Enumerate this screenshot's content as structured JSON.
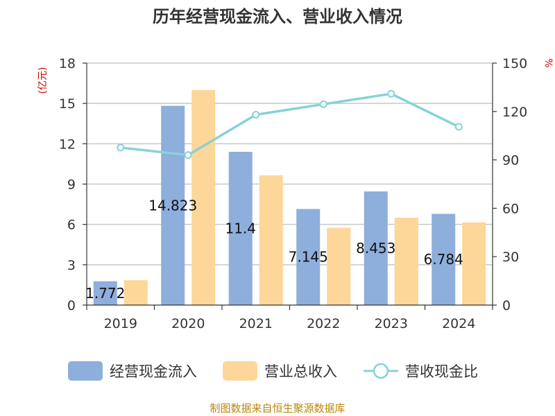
{
  "chart_data": {
    "type": "bar",
    "title": "历年经营现金流入、营业收入情况",
    "categories": [
      "2019",
      "2020",
      "2021",
      "2022",
      "2023",
      "2024"
    ],
    "series": [
      {
        "name": "经营现金流入",
        "kind": "bar",
        "axis": "left",
        "color": "#8eaedc",
        "values": [
          1.772,
          14.823,
          11.4,
          7.145,
          8.453,
          6.784
        ]
      },
      {
        "name": "营业总收入",
        "kind": "bar",
        "axis": "left",
        "color": "#fdd699",
        "values": [
          1.85,
          16.0,
          9.65,
          5.75,
          6.5,
          6.15
        ]
      },
      {
        "name": "营收现金比",
        "kind": "line",
        "axis": "right",
        "color": "#86d3d5",
        "values": [
          97.6,
          93.0,
          118.0,
          124.5,
          131.0,
          110.5
        ]
      }
    ],
    "data_labels": [
      "1.772",
      "14.823",
      "11.4",
      "7.145",
      "8.453",
      "6.784"
    ],
    "y_left": {
      "label": "(亿元)",
      "ticks": [
        0,
        3,
        6,
        9,
        12,
        15,
        18
      ],
      "range": [
        0,
        18
      ]
    },
    "y_right": {
      "label": "%",
      "ticks": [
        0,
        30,
        60,
        90,
        120,
        150
      ],
      "range": [
        0,
        150
      ]
    },
    "grid": true,
    "legend_position": "bottom"
  },
  "source": "制图数据来自恒生聚源数据库"
}
